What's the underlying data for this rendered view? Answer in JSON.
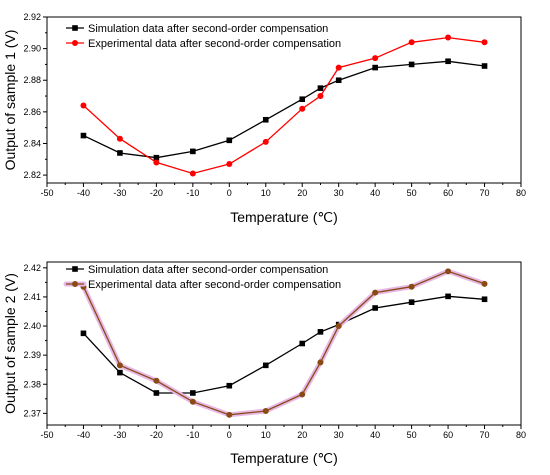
{
  "chart_data": [
    {
      "type": "line",
      "x": [
        -40,
        -30,
        -20,
        -10,
        0,
        10,
        20,
        25,
        30,
        40,
        50,
        60,
        70
      ],
      "xlim": [
        -50,
        80
      ],
      "ylim": [
        2.815,
        2.92
      ],
      "xticks": [
        "-50",
        "-40",
        "-30",
        "-20",
        "-10",
        "0",
        "10",
        "20",
        "30",
        "40",
        "50",
        "60",
        "70",
        "80"
      ],
      "yticks": [
        "2.82",
        "2.84",
        "2.86",
        "2.88",
        "2.90",
        "2.92"
      ],
      "xlabel": "Temperature (℃)",
      "ylabel": "Output of sample 1 (V)",
      "legend_position": "top-left",
      "grid": false,
      "series": [
        {
          "name": "Simulation data after second-order compensation",
          "color": "#000000",
          "marker": "square",
          "values": [
            2.845,
            2.834,
            2.831,
            2.835,
            2.842,
            2.855,
            2.868,
            2.875,
            2.88,
            2.888,
            2.89,
            2.892,
            2.889
          ]
        },
        {
          "name": "Experimental data after second-order compensation",
          "color": "#ff0000",
          "marker": "circle",
          "values": [
            2.864,
            2.843,
            2.828,
            2.821,
            2.827,
            2.841,
            2.862,
            2.87,
            2.888,
            2.894,
            2.904,
            2.907,
            2.904
          ]
        }
      ]
    },
    {
      "type": "line",
      "x": [
        -40,
        -30,
        -20,
        -10,
        0,
        10,
        20,
        25,
        30,
        40,
        50,
        60,
        70
      ],
      "xlim": [
        -50,
        80
      ],
      "ylim": [
        2.366,
        2.422
      ],
      "xticks": [
        "-50",
        "-40",
        "-30",
        "-20",
        "-10",
        "0",
        "10",
        "20",
        "30",
        "40",
        "50",
        "60",
        "70",
        "80"
      ],
      "yticks": [
        "2.37",
        "2.38",
        "2.39",
        "2.40",
        "2.41",
        "2.42"
      ],
      "xlabel": "Temperature (℃)",
      "ylabel": "Output of sample 2 (V)",
      "legend_position": "top-left",
      "grid": false,
      "series": [
        {
          "name": "Simulation data after second-order compensation",
          "color": "#000000",
          "marker": "square",
          "values": [
            2.3975,
            2.384,
            2.377,
            2.377,
            2.3795,
            2.3865,
            2.394,
            2.398,
            2.4005,
            2.4062,
            2.4082,
            2.4102,
            2.4092
          ]
        },
        {
          "name": "Experimental data after second-order compensation",
          "color": "#8b4a14",
          "halo": "#e6b8e6",
          "marker": "circle",
          "values": [
            2.4135,
            2.3865,
            2.3812,
            2.374,
            2.3695,
            2.3708,
            2.3765,
            2.3875,
            2.4,
            2.4115,
            2.4135,
            2.4188,
            2.4145
          ]
        }
      ]
    }
  ]
}
